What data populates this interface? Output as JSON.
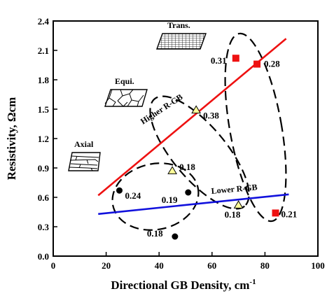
{
  "chart_data": {
    "type": "scatter",
    "title": "",
    "xlabel": "Directional GB Density, cm",
    "xlabel_superscript": "-1",
    "ylabel": "Resistivity, Ωcm",
    "xlim": [
      0,
      100
    ],
    "ylim": [
      0.0,
      2.4
    ],
    "xticks": [
      "0",
      "20",
      "40",
      "60",
      "80",
      "100"
    ],
    "yticks": [
      "0.0",
      "0.3",
      "0.6",
      "0.9",
      "1.2",
      "1.5",
      "1.8",
      "2.1",
      "2.4"
    ],
    "grid": false,
    "series": [
      {
        "marker": "circle",
        "color": "#000000",
        "points": [
          {
            "x": 25,
            "y": 0.67,
            "label": "0.24"
          },
          {
            "x": 51,
            "y": 0.65,
            "label": "0.19"
          },
          {
            "x": 46,
            "y": 0.2,
            "label": "0.18"
          }
        ]
      },
      {
        "marker": "triangle",
        "color": "#ffff99",
        "points": [
          {
            "x": 45,
            "y": 0.87,
            "label": "0.18"
          },
          {
            "x": 54,
            "y": 1.49,
            "label": "0.38"
          },
          {
            "x": 70,
            "y": 0.52,
            "label": "0.18"
          }
        ]
      },
      {
        "marker": "square",
        "color": "#ee1111",
        "points": [
          {
            "x": 69,
            "y": 2.02,
            "label": "0.31"
          },
          {
            "x": 77,
            "y": 1.96,
            "label": "0.28"
          },
          {
            "x": 84,
            "y": 0.44,
            "label": "0.21"
          }
        ]
      }
    ],
    "trend_lines": [
      {
        "label": "Higher R-GB",
        "color": "#ee1111",
        "x": [
          17,
          88
        ],
        "y": [
          0.62,
          2.22
        ]
      },
      {
        "label": "Lower R-GB",
        "color": "#1111dd",
        "x": [
          17,
          89
        ],
        "y": [
          0.43,
          0.63
        ]
      }
    ],
    "insets": [
      {
        "label": "Trans.",
        "icon": "transverse-microstructure-icon"
      },
      {
        "label": "Equi.",
        "icon": "equiaxed-microstructure-icon"
      },
      {
        "label": "Axial",
        "icon": "axial-microstructure-icon"
      }
    ]
  }
}
